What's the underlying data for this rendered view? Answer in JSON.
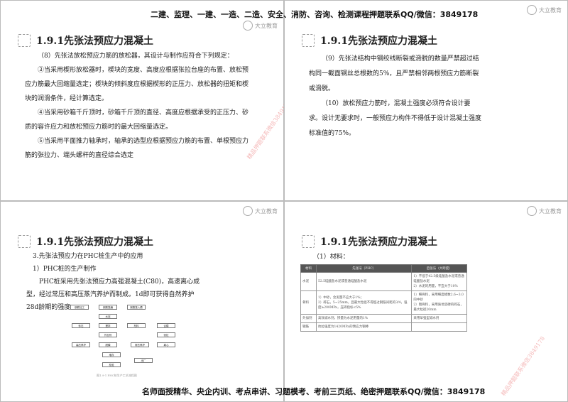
{
  "header_banner": "二建、监理、一建、一造、二造、安全、消防、咨询、检测课程押题联系QQ/微信：3849178",
  "footer_banner": "名师面授精华、央企内训、考点串讲、习题模考、考前三页纸、绝密押题联系QQ/微信：3849178",
  "logo_text": "大立教育",
  "watermark": "精品押题联系微信3849178",
  "slides": [
    {
      "title": "1.9.1先张法预应力混凝土",
      "paragraphs": [
        "（8）先张法放松预应力筋的放松器，其设计与制作应符合下列规定：",
        "③当采用楔形放松器时，楔块的宽度、高度应根据张拉台座的布置、放松预应力筋最大回缩量选定；楔块的倾斜度应根据楔形的正压力、放松器的扭矩和楔块的润滑条件，经计算选定。",
        "④当采用砂箱千斤顶时，砂箱千斤顶的直径、高度应根据承受的正压力、砂质的容许应力和放松预应力筋时的最大回缩量选定。",
        "⑤当采用平面推力轴承时，轴承的选型应根据预应力筋的布置、单根预应力筋的张拉力、端头螺杆的直径综合选定"
      ]
    },
    {
      "title": "1.9.1先张法预应力混凝土",
      "paragraphs": [
        "（9）先张法结构中钢绞线断裂或滑脱的数量严禁超过结构同一截面钢丝总根数的5%，且严禁相邻两根预应力筋断裂或滑脱。",
        "（10）放松预应力筋时，混凝土强度必须符合设计要求。设计无要求时，一般预应力构件不得低于设计混凝土强度标准值的75%。"
      ]
    },
    {
      "title": "1.9.1先张法预应力混凝土",
      "paragraphs": [
        "3.先张法预应力在PHC桩生产中的应用",
        "1）PHC桩的生产制作",
        "PHC桩采用先张法预应力高强混凝土(C80)，高速离心成型，经过常压和高压蒸汽养护而制成。1d即可获得自然养护28d龄期的强度。"
      ],
      "flow_boxes": [
        "钢筋加工",
        "钢筋笼编",
        "钢筋笼入模",
        "水泥",
        "砂石",
        "搅拌",
        "布料",
        "合模",
        "外加剂",
        "张拉",
        "高压养护",
        "脱模",
        "常压养护",
        "离心",
        "堆存",
        "检验",
        "出厂"
      ],
      "figure_caption": "图1.9-1 PHC桩生产工艺流程图"
    },
    {
      "title": "1.9.1先张法预应力混凝土",
      "intro": "（1）材料：",
      "table": {
        "headers": [
          "材料",
          "先张法（PHC）",
          "后张法（大跨度）"
        ],
        "rows": [
          [
            "水泥",
            "52.5硅酸盐水泥或普通硅酸盐水泥",
            "1）不低于42.5级硅酸盐水泥或普通硅酸盐水泥\n2）水泥的用量，不宜大于10%"
          ],
          [
            "骨料",
            "1）中砂，含泥量不应大于1%；\n2）碎石，5~25mm，且最大粒径不得超过钢筋间距的3/4，强度≥200MPa，压碎指标<5%",
            "1）细骨料，采用细度模数2.6~3.0的中砂\n2）粗骨料，采用质地坚硬的碎石，最大粒径20mm"
          ],
          [
            "外加剂",
            "高效减水剂，掺量为水泥用量的1%",
            "采用早强型减水剂"
          ],
          [
            "钢筋",
            "抗拉强度为1420MPa的预应力钢棒",
            ""
          ]
        ]
      }
    }
  ]
}
